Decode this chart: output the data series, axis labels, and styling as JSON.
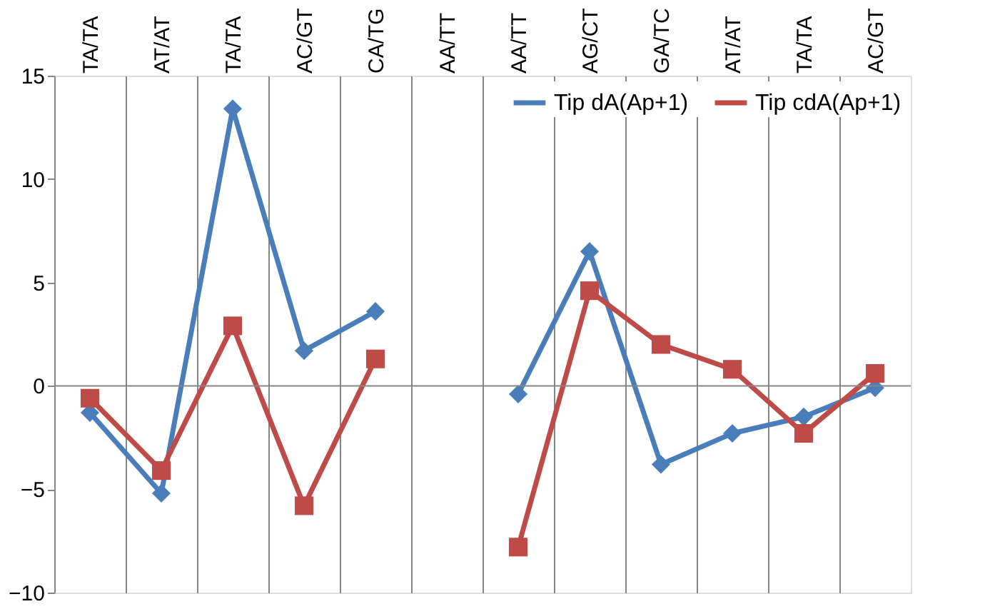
{
  "chart_data": {
    "type": "line",
    "categories": [
      "TA/TA",
      "AT/AT",
      "TA/TA",
      "AC/GT",
      "CA/TG",
      "AA/TT",
      "AA/TT",
      "AG/CT",
      "GA/TC",
      "AT/AT",
      "TA/TA",
      "AC/GT"
    ],
    "series": [
      {
        "name": "Tip dA(Ap+1)",
        "color": "#4a7ebb",
        "marker": "diamond",
        "values": [
          -1.3,
          -5.2,
          13.4,
          1.7,
          3.6,
          null,
          -0.4,
          6.5,
          -3.8,
          -2.3,
          -1.5,
          -0.1
        ]
      },
      {
        "name": "Tip cdA(Ap+1)",
        "color": "#be4b48",
        "marker": "square",
        "values": [
          -0.6,
          -4.1,
          2.9,
          -5.8,
          1.3,
          null,
          -7.8,
          4.6,
          2.0,
          0.8,
          -2.3,
          0.6
        ]
      }
    ],
    "ylim": [
      -10,
      15
    ],
    "yticks": [
      -10,
      -5,
      0,
      5,
      10,
      15
    ],
    "grid": "x",
    "legend": "top right",
    "line_style": "solid",
    "ref_lines": [
      {
        "axis": "y",
        "value": 0,
        "color": "#868686"
      }
    ]
  }
}
